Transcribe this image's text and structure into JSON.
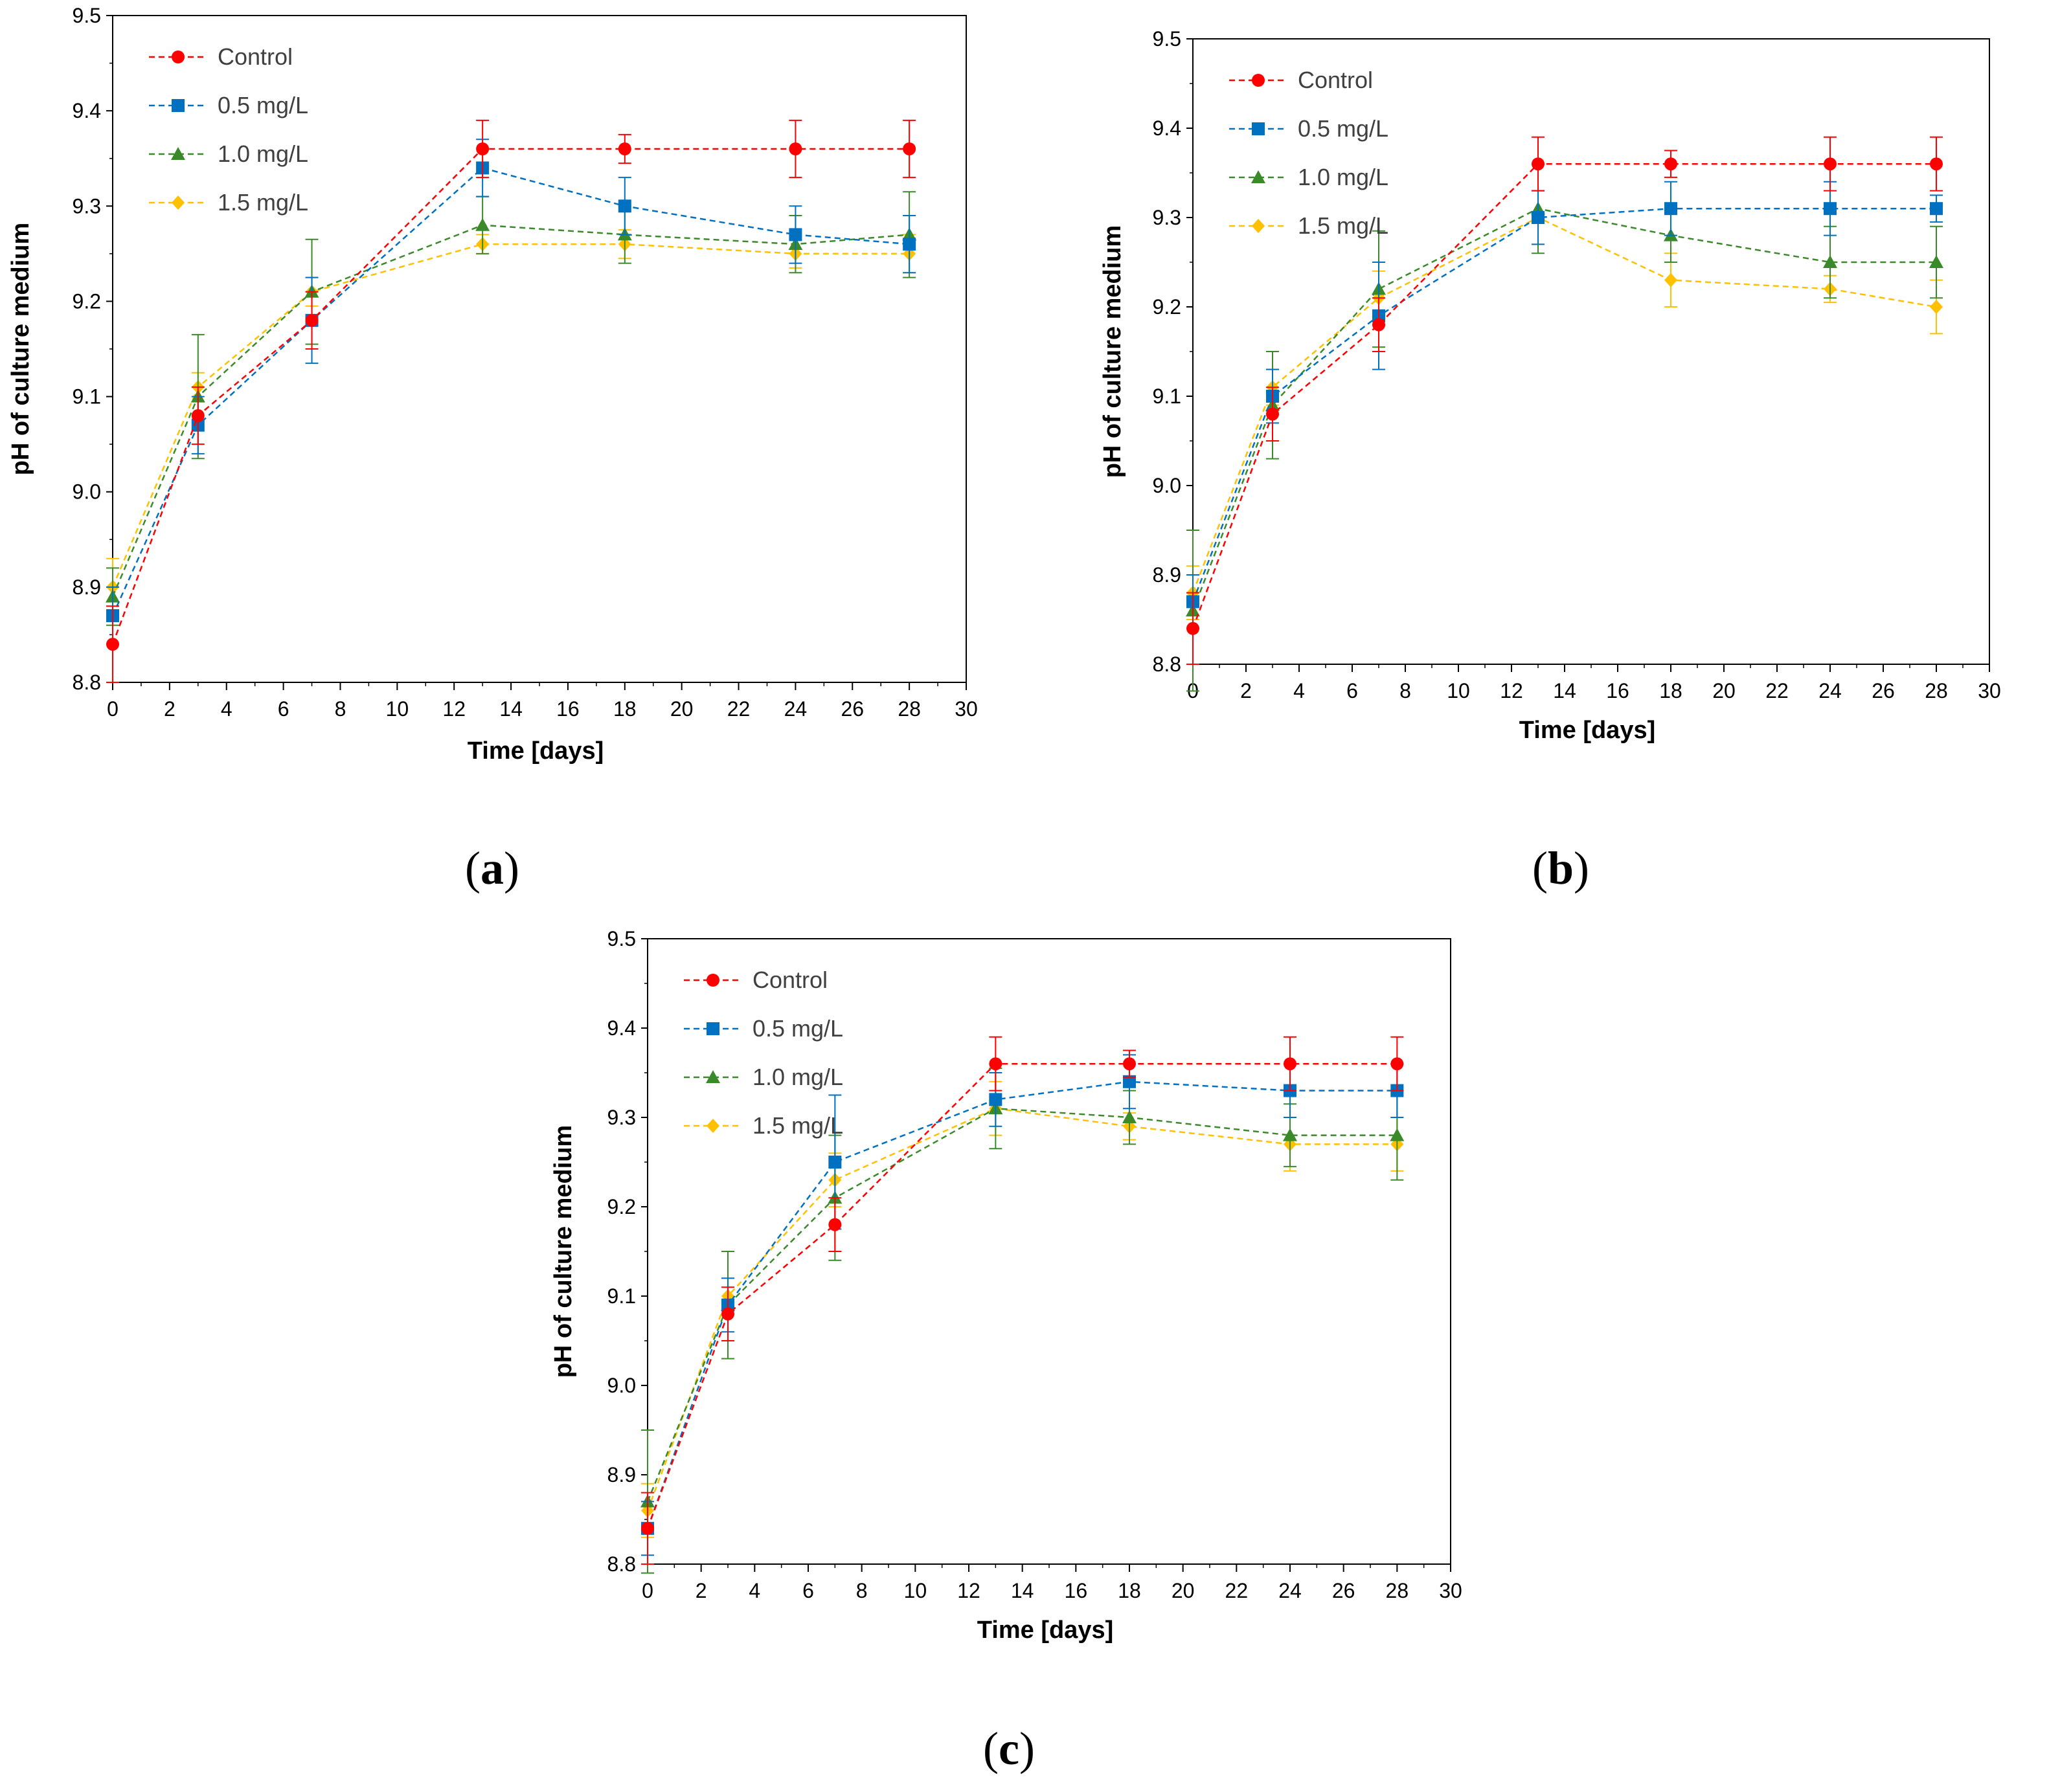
{
  "chart_data": [
    {
      "id": "a",
      "type": "line",
      "panel_label": "a",
      "xlabel": "Time [days]",
      "ylabel": "pH of culture medium",
      "xlim": [
        0,
        30
      ],
      "ylim": [
        8.8,
        9.5
      ],
      "x_ticks": [
        "0",
        "2",
        "4",
        "6",
        "8",
        "10",
        "12",
        "14",
        "16",
        "18",
        "20",
        "22",
        "24",
        "26",
        "28",
        "30"
      ],
      "y_ticks": [
        "8.8",
        "8.9",
        "9.0",
        "9.1",
        "9.2",
        "9.3",
        "9.4",
        "9.5"
      ],
      "legend_position": "top-left",
      "x": [
        0,
        3,
        7,
        13,
        18,
        24,
        28
      ],
      "series": [
        {
          "name": "Control",
          "color": "#ff0000",
          "marker": "circle",
          "values": [
            8.84,
            9.08,
            9.18,
            9.36,
            9.36,
            9.36,
            9.36
          ],
          "errors": [
            0.04,
            0.03,
            0.03,
            0.03,
            0.015,
            0.03,
            0.03
          ]
        },
        {
          "name": "0.5 mg/L",
          "color": "#0070c0",
          "marker": "square",
          "values": [
            8.87,
            9.07,
            9.18,
            9.34,
            9.3,
            9.27,
            9.26
          ],
          "errors": [
            0.03,
            0.03,
            0.045,
            0.03,
            0.03,
            0.03,
            0.03
          ]
        },
        {
          "name": "1.0 mg/L",
          "color": "#3a8a2a",
          "marker": "triangle",
          "values": [
            8.89,
            9.1,
            9.21,
            9.28,
            9.27,
            9.26,
            9.27
          ],
          "errors": [
            0.03,
            0.065,
            0.055,
            0.03,
            0.03,
            0.03,
            0.045
          ]
        },
        {
          "name": "1.5 mg/L",
          "color": "#ffc000",
          "marker": "diamond",
          "values": [
            8.9,
            9.11,
            9.21,
            9.26,
            9.26,
            9.25,
            9.25
          ],
          "errors": [
            0.03,
            0.015,
            0.015,
            0.01,
            0.015,
            0.015,
            0.02
          ]
        }
      ]
    },
    {
      "id": "b",
      "type": "line",
      "panel_label": "b",
      "xlabel": "Time [days]",
      "ylabel": "pH of culture medium",
      "xlim": [
        0,
        30
      ],
      "ylim": [
        8.8,
        9.5
      ],
      "x_ticks": [
        "0",
        "2",
        "4",
        "6",
        "8",
        "10",
        "12",
        "14",
        "16",
        "18",
        "20",
        "22",
        "24",
        "26",
        "28",
        "30"
      ],
      "y_ticks": [
        "8.8",
        "8.9",
        "9.0",
        "9.1",
        "9.2",
        "9.3",
        "9.4",
        "9.5"
      ],
      "legend_position": "top-left",
      "x": [
        0,
        3,
        7,
        13,
        18,
        24,
        28
      ],
      "series": [
        {
          "name": "Control",
          "color": "#ff0000",
          "marker": "circle",
          "values": [
            8.84,
            9.08,
            9.18,
            9.36,
            9.36,
            9.36,
            9.36
          ],
          "errors": [
            0.04,
            0.03,
            0.03,
            0.03,
            0.015,
            0.03,
            0.03
          ]
        },
        {
          "name": "0.5 mg/L",
          "color": "#0070c0",
          "marker": "square",
          "values": [
            8.87,
            9.1,
            9.19,
            9.3,
            9.31,
            9.31,
            9.31
          ],
          "errors": [
            0.03,
            0.03,
            0.06,
            0.03,
            0.03,
            0.03,
            0.015
          ]
        },
        {
          "name": "1.0 mg/L",
          "color": "#3a8a2a",
          "marker": "triangle",
          "values": [
            8.86,
            9.09,
            9.22,
            9.31,
            9.28,
            9.25,
            9.25
          ],
          "errors": [
            0.09,
            0.06,
            0.065,
            0.05,
            0.03,
            0.04,
            0.04
          ]
        },
        {
          "name": "1.5 mg/L",
          "color": "#ffc000",
          "marker": "diamond",
          "values": [
            8.88,
            9.11,
            9.21,
            9.3,
            9.23,
            9.22,
            9.2
          ],
          "errors": [
            0.03,
            0.02,
            0.03,
            0.03,
            0.03,
            0.015,
            0.03
          ]
        }
      ]
    },
    {
      "id": "c",
      "type": "line",
      "panel_label": "c",
      "xlabel": "Time [days]",
      "ylabel": "pH of culture medium",
      "xlim": [
        0,
        30
      ],
      "ylim": [
        8.8,
        9.5
      ],
      "x_ticks": [
        "0",
        "2",
        "4",
        "6",
        "8",
        "10",
        "12",
        "14",
        "16",
        "18",
        "20",
        "22",
        "24",
        "26",
        "28",
        "30"
      ],
      "y_ticks": [
        "8.8",
        "8.9",
        "9.0",
        "9.1",
        "9.2",
        "9.3",
        "9.4",
        "9.5"
      ],
      "legend_position": "top-left",
      "x": [
        0,
        3,
        7,
        13,
        18,
        24,
        28
      ],
      "series": [
        {
          "name": "Control",
          "color": "#ff0000",
          "marker": "circle",
          "values": [
            8.84,
            9.08,
            9.18,
            9.36,
            9.36,
            9.36,
            9.36
          ],
          "errors": [
            0.04,
            0.03,
            0.03,
            0.03,
            0.015,
            0.03,
            0.03
          ]
        },
        {
          "name": "0.5 mg/L",
          "color": "#0070c0",
          "marker": "square",
          "values": [
            8.84,
            9.09,
            9.25,
            9.32,
            9.34,
            9.33,
            9.33
          ],
          "errors": [
            0.03,
            0.03,
            0.075,
            0.03,
            0.03,
            0.03,
            0.03
          ]
        },
        {
          "name": "1.0 mg/L",
          "color": "#3a8a2a",
          "marker": "triangle",
          "values": [
            8.87,
            9.09,
            9.21,
            9.31,
            9.3,
            9.28,
            9.28
          ],
          "errors": [
            0.08,
            0.06,
            0.07,
            0.045,
            0.03,
            0.035,
            0.05
          ]
        },
        {
          "name": "1.5 mg/L",
          "color": "#ffc000",
          "marker": "diamond",
          "values": [
            8.86,
            9.1,
            9.23,
            9.31,
            9.29,
            9.27,
            9.27
          ],
          "errors": [
            0.03,
            0.02,
            0.03,
            0.03,
            0.015,
            0.03,
            0.03
          ]
        }
      ]
    }
  ]
}
